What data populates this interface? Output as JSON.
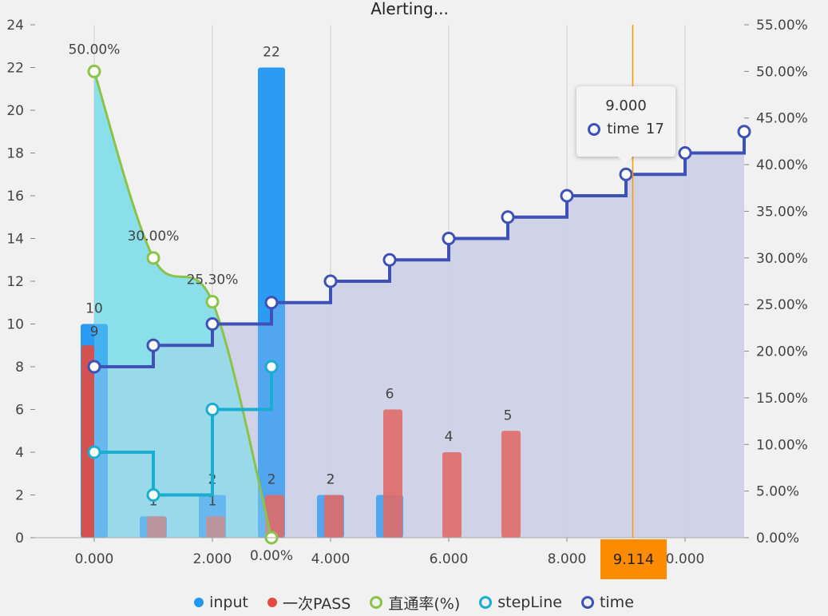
{
  "chart_data": {
    "type": "bar",
    "title": "Alerting...",
    "x_ticks": [
      "0.000",
      "2.000",
      "4.000",
      "6.000",
      "8.000",
      "0.000"
    ],
    "xlim": [
      -1,
      11
    ],
    "ylim_left": [
      0,
      24
    ],
    "y_ticks_left": [
      "0",
      "2",
      "4",
      "6",
      "8",
      "10",
      "12",
      "14",
      "16",
      "18",
      "20",
      "22",
      "24"
    ],
    "ylim_right": [
      0,
      0.55
    ],
    "y_ticks_right": [
      "0.00%",
      "5.00%",
      "10.00%",
      "15.00%",
      "20.00%",
      "25.00%",
      "30.00%",
      "35.00%",
      "40.00%",
      "45.00%",
      "50.00%",
      "55.00%"
    ],
    "grid": "vertical",
    "legend_position": "bottom",
    "series": [
      {
        "name": "input",
        "type": "bar",
        "color": "#2196f3",
        "x": [
          0,
          1,
          2,
          3,
          4,
          5
        ],
        "values": [
          10,
          1,
          2,
          22,
          2,
          2
        ],
        "labels": [
          "10",
          "1",
          "2",
          "22",
          "2",
          ""
        ]
      },
      {
        "name": "一次PASS",
        "type": "bar",
        "color": "#e64a3f",
        "x": [
          0,
          1,
          2,
          3,
          4,
          5,
          6,
          7
        ],
        "values": [
          9,
          1,
          1,
          2,
          2,
          6,
          4,
          5
        ],
        "labels": [
          "9",
          "",
          "1",
          "2",
          "2",
          "6",
          "4",
          "5"
        ]
      },
      {
        "name": "直通率(%)",
        "type": "smooth-area",
        "color": "#8bc34a",
        "fill": "#80deea",
        "x": [
          0,
          1,
          2,
          3
        ],
        "values": [
          0.5,
          0.3,
          0.253,
          0.0
        ],
        "labels": [
          "50.00%",
          "30.00%",
          "25.30%",
          "0.00%"
        ]
      },
      {
        "name": "stepLine",
        "type": "step",
        "color": "#19aecf",
        "x": [
          0,
          1,
          2,
          3
        ],
        "values": [
          4,
          2,
          6,
          8
        ]
      },
      {
        "name": "time",
        "type": "step-area",
        "color": "#3f51b5",
        "fill": "#cdd0e8",
        "x": [
          0,
          1,
          2,
          3,
          4,
          5,
          6,
          7,
          8,
          9,
          10,
          11
        ],
        "values": [
          8,
          9,
          10,
          11,
          12,
          13,
          14,
          15,
          16,
          17,
          18,
          19
        ]
      }
    ],
    "tooltip": {
      "title": "9.000",
      "series": "time",
      "value": "17"
    },
    "crosshair": {
      "x": 9.114,
      "label": "9.114"
    }
  }
}
